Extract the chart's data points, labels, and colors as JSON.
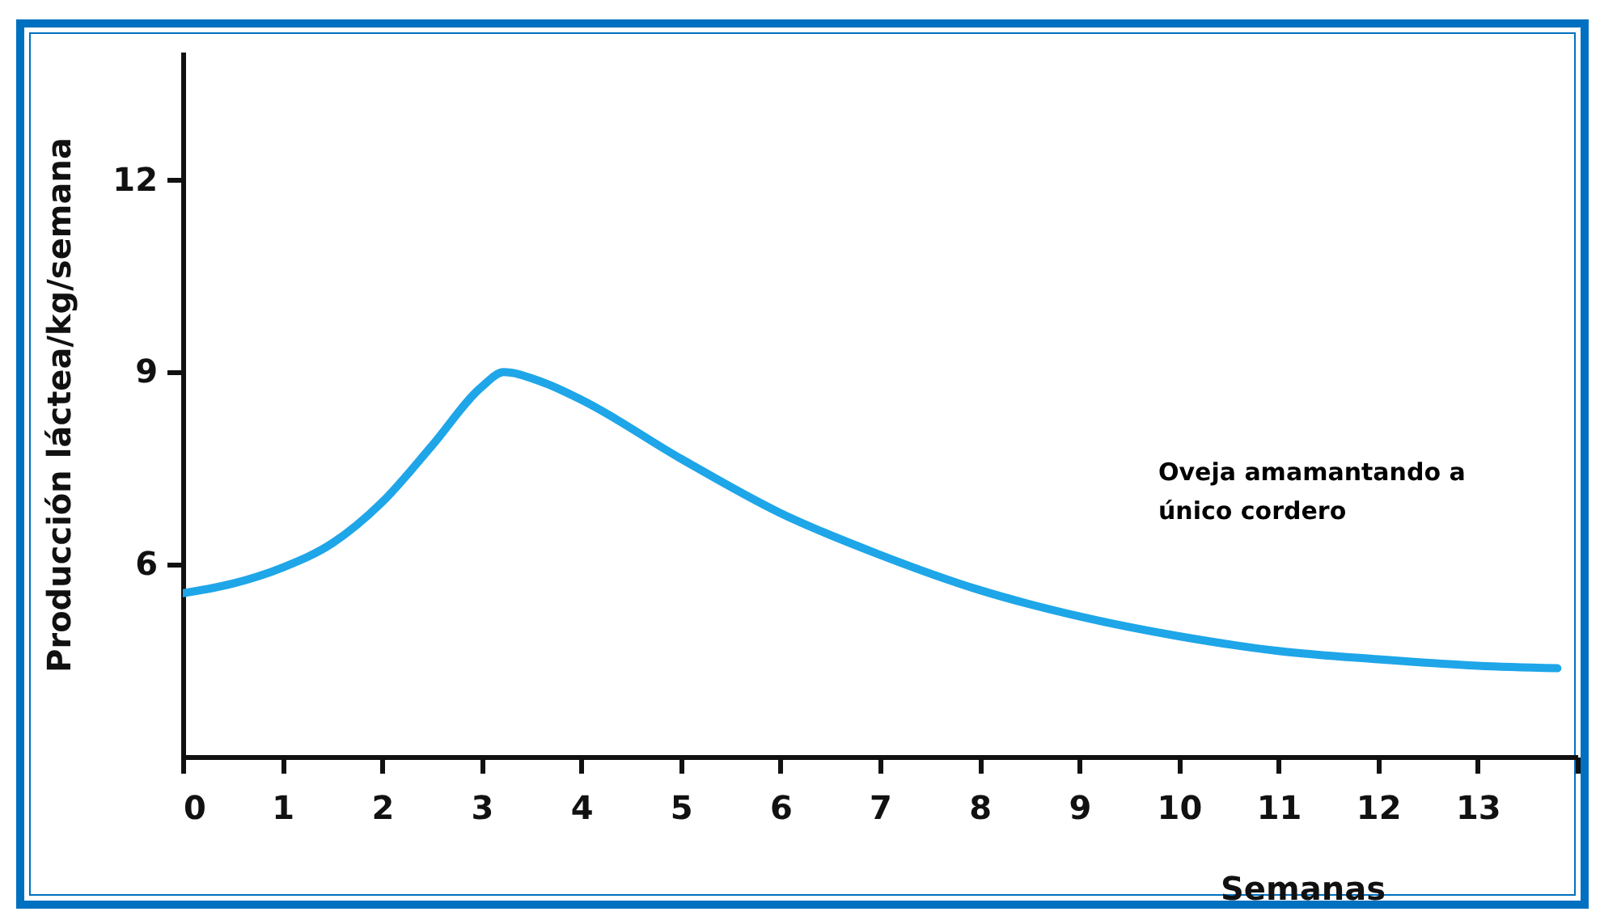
{
  "chart_data": {
    "type": "line",
    "xlabel": "Semanas",
    "ylabel": "Producción láctea/kg/semana",
    "annotations": [
      "Oveja amamantando a único cordero"
    ],
    "x": [
      0,
      0.5,
      1,
      1.5,
      2,
      2.5,
      3,
      3.22,
      3.6,
      4,
      5,
      6,
      7,
      8,
      9,
      10,
      11,
      12,
      13,
      13.8
    ],
    "series": [
      {
        "color": "#1ea6e8",
        "values": [
          5.55,
          5.7,
          5.95,
          6.33,
          6.97,
          7.85,
          8.77,
          9.0,
          8.85,
          8.57,
          7.65,
          6.8,
          6.15,
          5.6,
          5.19,
          4.88,
          4.65,
          4.52,
          4.42,
          4.38
        ]
      }
    ],
    "xlim": [
      0,
      14
    ],
    "xticks": [
      0,
      1,
      2,
      3,
      4,
      5,
      6,
      7,
      8,
      9,
      10,
      11,
      12,
      13,
      {
        "value": 14,
        "label": null
      }
    ],
    "ylim": [
      3,
      14
    ],
    "yticks": [
      6,
      9,
      12
    ],
    "grid": false,
    "marker": "none",
    "line_style": "solid"
  }
}
